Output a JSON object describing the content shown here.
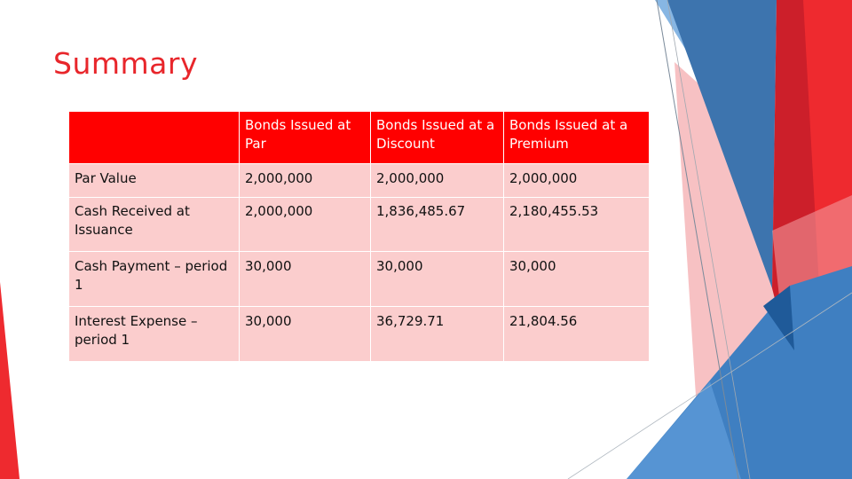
{
  "slide": {
    "title": "Summary",
    "colors": {
      "title": "#e8262b",
      "header_bg": "#ff0000",
      "header_text": "#ffffff",
      "cell_bg": "#fbcdcd",
      "accent_blue": "#3f7fc1",
      "accent_red": "#e8262b"
    }
  },
  "table": {
    "header": {
      "corner": "",
      "par": "Bonds Issued at Par",
      "discount": "Bonds Issued at a Discount",
      "premium": "Bonds Issued at a Premium"
    },
    "rows": [
      {
        "label": "Par Value",
        "par": "2,000,000",
        "discount": "2,000,000",
        "premium": "2,000,000"
      },
      {
        "label": "Cash Received at Issuance",
        "par": "2,000,000",
        "discount": "1,836,485.67",
        "premium": "2,180,455.53"
      },
      {
        "label": "Cash Payment – period 1",
        "par": "30,000",
        "discount": "30,000",
        "premium": "30,000"
      },
      {
        "label": "Interest Expense – period 1",
        "par": "30,000",
        "discount": "36,729.71",
        "premium": "21,804.56"
      }
    ]
  }
}
